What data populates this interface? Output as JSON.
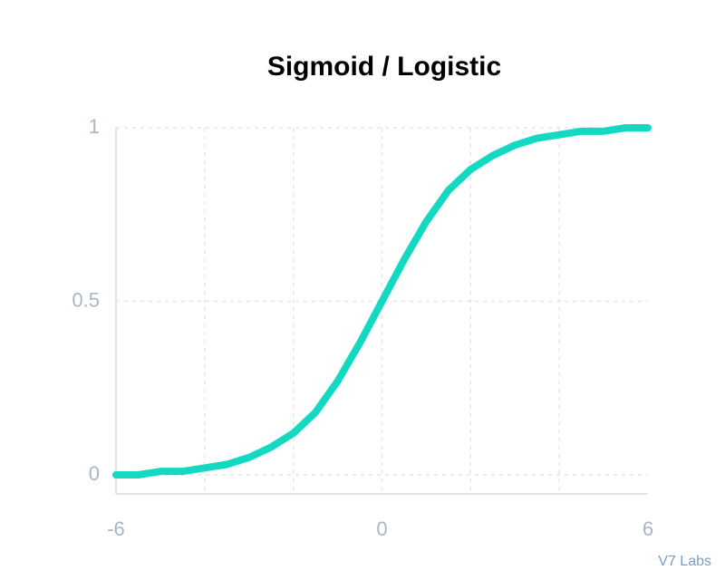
{
  "chart_data": {
    "type": "line",
    "title": "Sigmoid / Logistic",
    "source": "V7 Labs",
    "x": [
      -6,
      -5.5,
      -5,
      -4.5,
      -4,
      -3.5,
      -3,
      -2.5,
      -2,
      -1.5,
      -1,
      -0.5,
      0,
      0.5,
      1,
      1.5,
      2,
      2.5,
      3,
      3.5,
      4,
      4.5,
      5,
      5.5,
      6
    ],
    "values": [
      0.0,
      0.0,
      0.01,
      0.01,
      0.02,
      0.03,
      0.05,
      0.08,
      0.12,
      0.18,
      0.27,
      0.38,
      0.5,
      0.62,
      0.73,
      0.82,
      0.88,
      0.92,
      0.95,
      0.97,
      0.98,
      0.99,
      0.99,
      1.0,
      1.0
    ],
    "color": "#14d9c2",
    "xlim": [
      -6,
      6
    ],
    "ylim": [
      0,
      1
    ],
    "xticks": [
      -6,
      0,
      6
    ],
    "yticks": [
      0,
      0.5,
      1
    ],
    "xgrid": [
      -4,
      -2,
      0,
      2,
      4
    ],
    "grid": true
  }
}
